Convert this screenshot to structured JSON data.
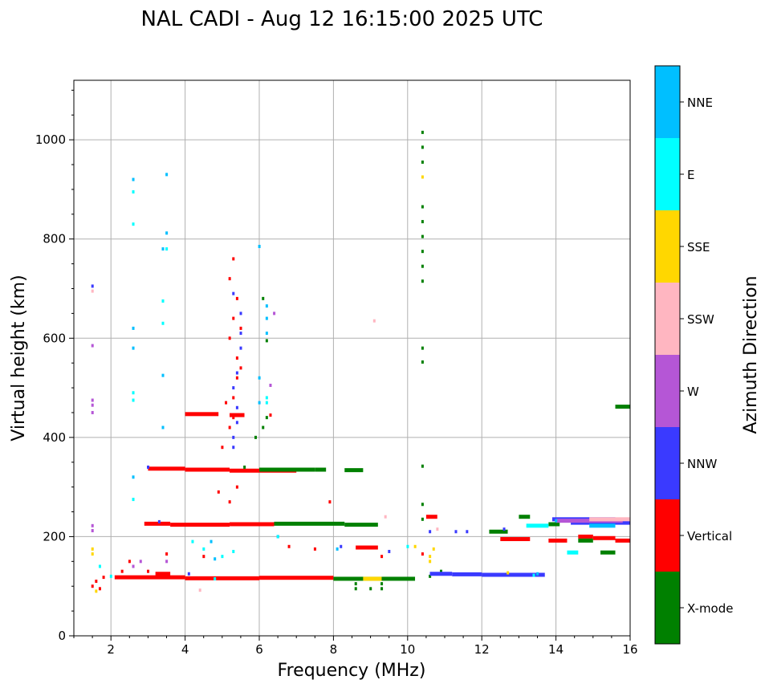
{
  "chart_data": {
    "type": "scatter",
    "title": "NAL CADI - Aug 12 16:15:00 2025 UTC",
    "xlabel": "Frequency (MHz)",
    "ylabel": "Virtual height (km)",
    "xlim": [
      1,
      16
    ],
    "ylim": [
      0,
      1120
    ],
    "xticks": [
      2,
      4,
      6,
      8,
      10,
      12,
      14,
      16
    ],
    "yticks": [
      0,
      200,
      400,
      600,
      800,
      1000
    ],
    "grid": true,
    "colorbar": {
      "label": "Azimuth Direction",
      "categories": [
        {
          "name": "X-mode",
          "color": "#008000"
        },
        {
          "name": "Vertical",
          "color": "#ff0000"
        },
        {
          "name": "NNW",
          "color": "#3a3aff"
        },
        {
          "name": "W",
          "color": "#b556d6"
        },
        {
          "name": "SSW",
          "color": "#ffb6c1"
        },
        {
          "name": "SSE",
          "color": "#ffd700"
        },
        {
          "name": "E",
          "color": "#00ffff"
        },
        {
          "name": "NNE",
          "color": "#00bfff"
        }
      ]
    },
    "series": [
      {
        "name": "Vertical",
        "color": "#ff0000",
        "segments": [
          [
            2.1,
            4.0,
            118
          ],
          [
            4.0,
            6.0,
            116
          ],
          [
            6.0,
            8.0,
            117
          ],
          [
            3.2,
            3.6,
            125
          ],
          [
            2.9,
            3.6,
            226
          ],
          [
            3.6,
            5.2,
            224
          ],
          [
            5.2,
            6.4,
            225
          ],
          [
            3.0,
            4.0,
            337
          ],
          [
            4.0,
            5.2,
            335
          ],
          [
            5.2,
            7.0,
            333
          ],
          [
            4.0,
            4.9,
            447
          ],
          [
            5.2,
            5.6,
            445
          ],
          [
            12.5,
            13.3,
            195
          ],
          [
            13.8,
            14.3,
            192
          ],
          [
            14.6,
            15.0,
            200
          ],
          [
            15.0,
            15.6,
            197
          ],
          [
            15.6,
            16.0,
            192
          ],
          [
            10.5,
            10.8,
            240
          ],
          [
            8.6,
            9.2,
            178
          ]
        ],
        "points": [
          [
            1.5,
            100
          ],
          [
            1.6,
            110
          ],
          [
            1.7,
            95
          ],
          [
            1.8,
            118
          ],
          [
            2.3,
            130
          ],
          [
            2.5,
            150
          ],
          [
            3.0,
            130
          ],
          [
            3.5,
            165
          ],
          [
            4.5,
            160
          ],
          [
            5.2,
            420
          ],
          [
            5.3,
            440
          ],
          [
            5.3,
            480
          ],
          [
            5.4,
            520
          ],
          [
            5.4,
            560
          ],
          [
            5.2,
            600
          ],
          [
            5.3,
            640
          ],
          [
            5.4,
            680
          ],
          [
            5.2,
            720
          ],
          [
            5.3,
            760
          ],
          [
            5.5,
            540
          ],
          [
            5.5,
            620
          ],
          [
            5.1,
            470
          ],
          [
            5.0,
            380
          ],
          [
            5.4,
            300
          ],
          [
            5.2,
            270
          ],
          [
            4.9,
            290
          ],
          [
            6.3,
            445
          ],
          [
            7.9,
            270
          ],
          [
            9.3,
            160
          ],
          [
            10.4,
            165
          ],
          [
            7.5,
            175
          ],
          [
            6.8,
            180
          ]
        ]
      },
      {
        "name": "X-mode",
        "color": "#008000",
        "segments": [
          [
            8.0,
            10.2,
            115
          ],
          [
            6.0,
            7.5,
            335
          ],
          [
            7.5,
            7.8,
            335
          ],
          [
            8.3,
            8.8,
            334
          ],
          [
            6.4,
            8.3,
            226
          ],
          [
            8.3,
            9.2,
            224
          ],
          [
            12.2,
            12.7,
            210
          ],
          [
            13.0,
            13.3,
            240
          ],
          [
            13.8,
            14.1,
            225
          ],
          [
            15.6,
            16.0,
            462
          ],
          [
            15.2,
            15.6,
            168
          ],
          [
            14.6,
            15.0,
            192
          ]
        ],
        "points": [
          [
            6.1,
            420
          ],
          [
            6.2,
            440
          ],
          [
            6.2,
            595
          ],
          [
            6.1,
            680
          ],
          [
            5.9,
            400
          ],
          [
            5.6,
            340
          ],
          [
            10.4,
            1015
          ],
          [
            10.4,
            985
          ],
          [
            10.4,
            955
          ],
          [
            10.4,
            865
          ],
          [
            10.4,
            835
          ],
          [
            10.4,
            805
          ],
          [
            10.4,
            775
          ],
          [
            10.4,
            745
          ],
          [
            10.4,
            715
          ],
          [
            10.4,
            580
          ],
          [
            10.4,
            552
          ],
          [
            10.4,
            342
          ],
          [
            10.4,
            265
          ],
          [
            10.4,
            235
          ],
          [
            8.6,
            95
          ],
          [
            9.0,
            95
          ],
          [
            9.3,
            95
          ],
          [
            8.6,
            105
          ],
          [
            9.3,
            105
          ],
          [
            10.6,
            120
          ],
          [
            10.9,
            130
          ]
        ]
      },
      {
        "name": "NNW",
        "color": "#3a3aff",
        "segments": [
          [
            10.6,
            11.2,
            125
          ],
          [
            11.2,
            12.0,
            124
          ],
          [
            12.0,
            13.7,
            123
          ],
          [
            13.9,
            15.6,
            235
          ],
          [
            14.4,
            16.0,
            228
          ]
        ],
        "points": [
          [
            5.3,
            380
          ],
          [
            5.3,
            400
          ],
          [
            5.4,
            430
          ],
          [
            5.4,
            460
          ],
          [
            5.3,
            500
          ],
          [
            5.4,
            530
          ],
          [
            5.5,
            580
          ],
          [
            5.5,
            610
          ],
          [
            5.5,
            650
          ],
          [
            5.3,
            690
          ],
          [
            1.5,
            705
          ],
          [
            3.0,
            340
          ],
          [
            3.3,
            230
          ],
          [
            4.1,
            125
          ],
          [
            6.5,
            200
          ],
          [
            8.2,
            180
          ],
          [
            9.5,
            170
          ],
          [
            10.6,
            210
          ],
          [
            11.3,
            210
          ],
          [
            11.6,
            210
          ],
          [
            12.6,
            215
          ]
        ]
      },
      {
        "name": "W",
        "color": "#b556d6",
        "segments": [
          [
            14.0,
            15.8,
            232
          ]
        ],
        "points": [
          [
            1.5,
            585
          ],
          [
            1.5,
            475
          ],
          [
            1.5,
            465
          ],
          [
            1.5,
            450
          ],
          [
            1.5,
            222
          ],
          [
            1.5,
            212
          ],
          [
            2.6,
            140
          ],
          [
            2.8,
            150
          ],
          [
            6.3,
            505
          ],
          [
            6.4,
            650
          ],
          [
            3.5,
            150
          ]
        ]
      },
      {
        "name": "SSW",
        "color": "#ffb6c1",
        "segments": [
          [
            14.9,
            16.0,
            235
          ]
        ],
        "points": [
          [
            9.1,
            635
          ],
          [
            9.4,
            240
          ],
          [
            1.5,
            695
          ],
          [
            10.8,
            215
          ],
          [
            4.4,
            92
          ]
        ]
      },
      {
        "name": "SSE",
        "color": "#ffd700",
        "segments": [
          [
            8.8,
            9.3,
            115
          ]
        ],
        "points": [
          [
            1.5,
            175
          ],
          [
            1.5,
            165
          ],
          [
            1.6,
            90
          ],
          [
            10.4,
            925
          ],
          [
            10.6,
            150
          ],
          [
            10.6,
            160
          ],
          [
            10.7,
            175
          ],
          [
            12.7,
            127
          ],
          [
            10.2,
            180
          ]
        ]
      },
      {
        "name": "E",
        "color": "#00ffff",
        "segments": [
          [
            13.2,
            13.8,
            222
          ],
          [
            14.3,
            14.6,
            168
          ]
        ],
        "points": [
          [
            2.6,
            895
          ],
          [
            2.6,
            490
          ],
          [
            2.6,
            475
          ],
          [
            2.6,
            275
          ],
          [
            1.7,
            140
          ],
          [
            2.0,
            120
          ],
          [
            3.4,
            675
          ],
          [
            3.4,
            630
          ],
          [
            4.5,
            175
          ],
          [
            5.0,
            160
          ],
          [
            5.3,
            170
          ],
          [
            6.2,
            470
          ],
          [
            6.2,
            480
          ],
          [
            6.5,
            200
          ],
          [
            13.4,
            122
          ],
          [
            3.5,
            780
          ],
          [
            2.6,
            830
          ],
          [
            4.2,
            190
          ],
          [
            4.8,
            115
          ],
          [
            10.0,
            180
          ]
        ]
      },
      {
        "name": "NNE",
        "color": "#00bfff",
        "segments": [
          [
            14.9,
            15.6,
            222
          ]
        ],
        "points": [
          [
            2.6,
            920
          ],
          [
            3.5,
            930
          ],
          [
            3.5,
            812
          ],
          [
            3.4,
            780
          ],
          [
            3.4,
            525
          ],
          [
            3.4,
            420
          ],
          [
            2.6,
            620
          ],
          [
            2.6,
            580
          ],
          [
            2.6,
            320
          ],
          [
            6.0,
            785
          ],
          [
            6.2,
            665
          ],
          [
            6.2,
            640
          ],
          [
            6.2,
            610
          ],
          [
            6.0,
            520
          ],
          [
            6.0,
            470
          ],
          [
            4.7,
            190
          ],
          [
            4.8,
            155
          ],
          [
            8.1,
            175
          ],
          [
            13.5,
            125
          ],
          [
            14.0,
            232
          ]
        ]
      }
    ]
  }
}
